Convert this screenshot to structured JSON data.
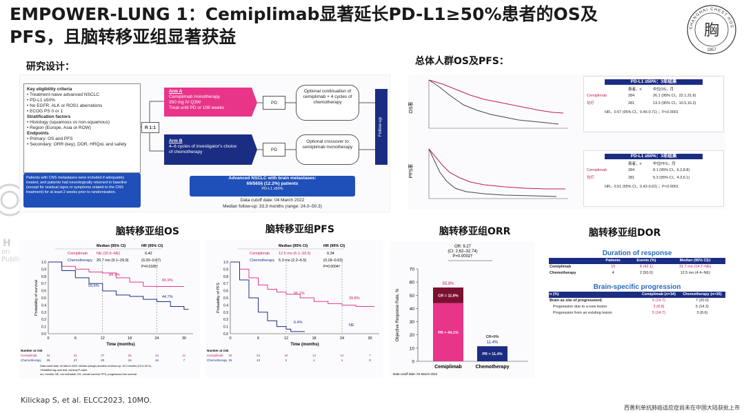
{
  "title": "EMPOWER-LUNG 1：Cemiplimab显著延长PD-L1≥50%患者的OS及PFS，且脑转移亚组显著获益",
  "logo": {
    "text": "SHANGHAI CHEST HOSPITAL",
    "year": "1957",
    "glyph": "胸"
  },
  "watermark": {
    "side_text": "H",
    "side_text2": "on Publishing"
  },
  "study_design_label": "研究设计：",
  "overall_label": "总体人群OS及PFS：",
  "footer": {
    "citation": "Kilickap S, et al. ELCC2023, 10MO.",
    "note": "西普利单抗肺癌适应症尚未在中国大陆获批上市"
  },
  "design": {
    "eligibility_header": "Key eligibility criteria",
    "eligibility": [
      "• Treatment-naive advanced NSCLC",
      "• PD-L1 ≥50%",
      "• No EGFR, ALK or ROS1 aberrations",
      "• ECOG PS 0 or 1"
    ],
    "strat_header": "Stratification factors",
    "strat": [
      "• Histology (squamous vs non-squamous)",
      "• Region (Europe, Asia or ROW)"
    ],
    "endpoints_header": "Endpoints",
    "endpoints": [
      "• Primary: OS and PFS",
      "• Secondary: ORR (key), DOR, HRQoL and safety"
    ],
    "cns_note": "Patients with CNS metastases were included if adequately treated, and patients had neurologically returned to baseline (except for residual signs or symptoms related to the CNS treatment) for at least 2 weeks prior to randomisation.",
    "randomize": "R 1:1",
    "armA_title": "Arm A",
    "armA_lines": [
      "Cemiplimab monotherapy",
      "350 mg IV Q3W",
      "Treat until PD or 108 weeks"
    ],
    "armB_title": "Arm B",
    "armB_lines": [
      "4–6 cycles of investigator's choice",
      "of chemotherapy"
    ],
    "pd": "PD",
    "contA": "Optional continuation of cemiplimab + 4 cycles of chemotherapy",
    "contB": "Optional crossover to cemiplimab monotherapy",
    "followup": "Follow-up",
    "brain_box_line1": "Advanced NSCLC with brain metastases:",
    "brain_box_line2": "69/565§ (12.2%) patients",
    "brain_box_line3": "PD-L1 ≥50%",
    "cutoff": "Data cutoff date: 04 March 2022",
    "median_fu": "Median follow-up: 33.3 months (range: 24.0–50.3)"
  },
  "os_table": {
    "title": "PD-L1 ≥50%：3年结果",
    "headers": [
      "患者，n",
      "中位OS，月"
    ],
    "rows": [
      {
        "name": "Cemiplimab",
        "n": "284",
        "value": "26.1 (95% CI，22.1,31.6)"
      },
      {
        "name": "化疗",
        "n": "281",
        "value": "13.3 (95% CI，10.5,16.2)"
      }
    ],
    "hr": "HR，0.57 (95% CI，0.46-0.71) ；P<0.0001"
  },
  "pfs_table": {
    "title": "PD-L1 ≥50%：3年结果",
    "headers": [
      "患者，n",
      "中位PFS，月"
    ],
    "rows": [
      {
        "name": "Cemiplimab",
        "n": "284",
        "value": "8.1 (95% CI，6.2,8.8)"
      },
      {
        "name": "化疗",
        "n": "281",
        "value": "5.3 (95% CI，4.3,6.1)"
      }
    ],
    "hr": "HR，0.51 (95% CI，0.42-0.62) ；P<0.0001"
  },
  "overall_os_ylabel": "OS率",
  "overall_pfs_ylabel": "PFS率",
  "brain_os": {
    "label": "脑转移亚组OS",
    "hdr_median": "Median (95% CI)",
    "hdr_hr": "HR (95% CI)",
    "cemi": "Cemiplimab",
    "cemi_median": "NE (20.6–NE)",
    "hr": "0.42",
    "chemo": "Chemotherapy",
    "chemo_median": "20.7 mo (9.1–29.9)",
    "hr_ci": "(0.20–0.87)",
    "p": "P=0.0185†",
    "ylabel": "Probability of survival",
    "xlabel": "Time (months)",
    "ticks_x": [
      "0",
      "6",
      "12",
      "18",
      "24",
      "30"
    ],
    "ticks_y": [
      "1.0",
      "0.9",
      "0.8",
      "0.7",
      "0.6",
      "0.5",
      "0.4",
      "0.3",
      "0.2",
      "0.1",
      "0.0"
    ],
    "ann": [
      "84.7%",
      "59.6%",
      "65.9%",
      "44.7%"
    ],
    "risk_header": "Number at risk",
    "risk_cemi": [
      "34",
      "31",
      "27",
      "25",
      "24",
      "11"
    ],
    "risk_chemo": [
      "35",
      "27",
      "20",
      "18",
      "15",
      "7"
    ],
    "foot": [
      "Data cutoff date: 04 March 2022. Median (range) duration of follow-up: 33.3 months (24.0–50.3).",
      "†Stratified log-rank test; nominal P-value.",
      "mo, months; NE, not estimable; OS, overall survival; PFS, progression-free survival."
    ]
  },
  "brain_pfs": {
    "label": "脑转移亚组PFS",
    "hdr_median": "Median (95% CI)",
    "hdr_hr": "HR (95% CI)",
    "cemi": "Cemiplimab",
    "cemi_median": "12.5 mo (6.1–33.5)",
    "hr": "0.34",
    "chemo": "Chemotherapy",
    "chemo_median": "5.3 mo (2.2–6.5)",
    "hr_ci": "(0.18–0.63)",
    "p": "P=0.0004†",
    "ylabel": "Probability of PFS",
    "xlabel": "Time (months)",
    "ticks_x": [
      "0",
      "6",
      "12",
      "18",
      "24",
      "30"
    ],
    "ticks_y": [
      "1.0",
      "0.9",
      "0.8",
      "0.7",
      "0.6",
      "0.5",
      "0.4",
      "0.3",
      "0.2",
      "0.1",
      "0.0"
    ],
    "ann": [
      "55.1%",
      "39.8%",
      "6.4%",
      "NE"
    ],
    "risk_header": "Number at risk",
    "risk_cemi": [
      "34",
      "23",
      "18",
      "13",
      "12",
      "7"
    ],
    "risk_chemo": [
      "35",
      "13",
      "2",
      "1",
      "1",
      "0"
    ]
  },
  "brain_orr": {
    "label": "脑转移亚组ORR",
    "or_line1": "OR: 9.27",
    "or_line2": "(CI: 2.62–32.74)",
    "or_line3": "P=0.0002†",
    "ylabel": "Objective Response Rate, %",
    "ticks_y": [
      "70",
      "60",
      "50",
      "40",
      "30",
      "20",
      "10",
      "0"
    ],
    "categories": [
      "Cemiplimab",
      "Chemotherapy"
    ],
    "totals": [
      "55.9%",
      "11.4%"
    ],
    "cr_labels": [
      "CR = 11.8%",
      "CR=0%"
    ],
    "pr_labels": [
      "PR = 44.1%",
      "PR = 11.4%"
    ],
    "foot": "Data cutoff date: 04 March 2022"
  },
  "brain_dor": {
    "label": "脑转移亚组DOR",
    "dor_title": "Duration of response",
    "dor_headers": [
      "Patients",
      "Events (%)",
      "Median (95% CI)‡"
    ],
    "dor_rows": [
      {
        "name": "Cemiplimab",
        "patients": "19",
        "events": "8 (42.1)",
        "median": "31.7 mo (14.7–NE)"
      },
      {
        "name": "Chemotherapy",
        "patients": "4",
        "events": "2 (50.0)",
        "median": "12.5 mo (4.4–NE)"
      }
    ],
    "bsp_title": "Brain-specific progression",
    "bsp_headers": [
      "n (%)",
      "Cemiplimab (n=34)",
      "Chemotherapy (n=35)"
    ],
    "bsp_rows": [
      {
        "name": "Brain as site of progression§",
        "cemi": "5 (14.7)",
        "chemo": "7 (20.0)"
      },
      {
        "name": "Progression due to a new lesion",
        "cemi": "3 (8.8)",
        "chemo": "5 (14.3)"
      },
      {
        "name": "Progression from an existing lesion",
        "cemi": "5 (14.7)",
        "chemo": "3 (8.6)"
      }
    ]
  },
  "chart_data": [
    {
      "type": "line",
      "title": "",
      "xlabel": "Time (months)",
      "ylabel": "Probability of survival",
      "xlim": [
        0,
        32
      ],
      "ylim": [
        0,
        1
      ],
      "series": [
        {
          "name": "Cemiplimab",
          "x": [
            0,
            3,
            6,
            9,
            12,
            15,
            18,
            21,
            24,
            27,
            30
          ],
          "values": [
            1.0,
            0.94,
            0.9,
            0.86,
            0.847,
            0.78,
            0.72,
            0.66,
            0.659,
            0.659,
            0.659
          ]
        },
        {
          "name": "Chemotherapy",
          "x": [
            0,
            3,
            6,
            9,
            12,
            15,
            18,
            21,
            24,
            27,
            30,
            31
          ],
          "values": [
            1.0,
            0.88,
            0.78,
            0.7,
            0.596,
            0.54,
            0.52,
            0.48,
            0.447,
            0.38,
            0.34,
            0.34
          ]
        }
      ]
    },
    {
      "type": "line",
      "title": "",
      "xlabel": "Time (months)",
      "ylabel": "Probability of PFS",
      "xlim": [
        0,
        32
      ],
      "ylim": [
        0,
        1
      ],
      "series": [
        {
          "name": "Cemiplimab",
          "x": [
            0,
            2,
            4,
            6,
            8,
            10,
            12,
            15,
            18,
            21,
            24,
            27,
            30,
            31
          ],
          "values": [
            1.0,
            0.9,
            0.78,
            0.68,
            0.62,
            0.58,
            0.551,
            0.5,
            0.45,
            0.42,
            0.398,
            0.38,
            0.38,
            0.38
          ]
        },
        {
          "name": "Chemotherapy",
          "x": [
            0,
            2,
            4,
            6,
            8,
            10,
            12,
            13,
            14,
            15,
            16
          ],
          "values": [
            1.0,
            0.75,
            0.5,
            0.3,
            0.18,
            0.1,
            0.064,
            0.03,
            0.03,
            0.03,
            0.03
          ]
        }
      ]
    },
    {
      "type": "bar",
      "title": "",
      "ylabel": "Objective Response Rate, %",
      "categories": [
        "Cemiplimab",
        "Chemotherapy"
      ],
      "ylim": [
        0,
        70
      ],
      "series": [
        {
          "name": "PR",
          "values": [
            44.1,
            11.4
          ]
        },
        {
          "name": "CR",
          "values": [
            11.8,
            0
          ]
        }
      ]
    }
  ]
}
